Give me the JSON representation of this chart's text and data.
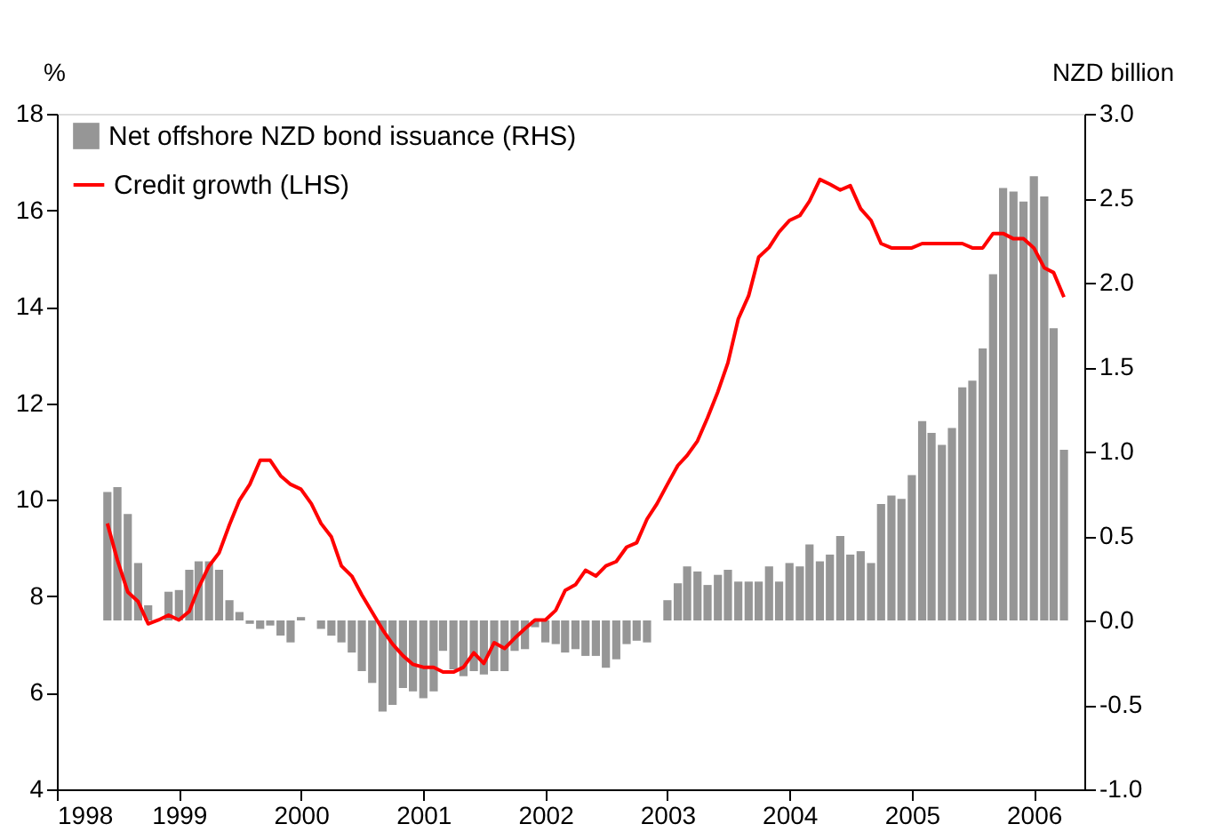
{
  "chart_data": {
    "type": "bar",
    "ylabel": "%",
    "y2label": "NZD billion",
    "x": [
      "1998-06",
      "1998-07",
      "1998-08",
      "1998-09",
      "1998-10",
      "1998-11",
      "1998-12",
      "1999-01",
      "1999-02",
      "1999-03",
      "1999-04",
      "1999-05",
      "1999-06",
      "1999-07",
      "1999-08",
      "1999-09",
      "1999-10",
      "1999-11",
      "1999-12",
      "2000-01",
      "2000-02",
      "2000-03",
      "2000-04",
      "2000-05",
      "2000-06",
      "2000-07",
      "2000-08",
      "2000-09",
      "2000-10",
      "2000-11",
      "2000-12",
      "2001-01",
      "2001-02",
      "2001-03",
      "2001-04",
      "2001-05",
      "2001-06",
      "2001-07",
      "2001-08",
      "2001-09",
      "2001-10",
      "2001-11",
      "2001-12",
      "2002-01",
      "2002-02",
      "2002-03",
      "2002-04",
      "2002-05",
      "2002-06",
      "2002-07",
      "2002-08",
      "2002-09",
      "2002-10",
      "2002-11",
      "2002-12",
      "2003-01",
      "2003-02",
      "2003-03",
      "2003-04",
      "2003-05",
      "2003-06",
      "2003-07",
      "2003-08",
      "2003-09",
      "2003-10",
      "2003-11",
      "2003-12",
      "2004-01",
      "2004-02",
      "2004-03",
      "2004-04",
      "2004-05",
      "2004-06",
      "2004-07",
      "2004-08",
      "2004-09",
      "2004-10",
      "2004-11",
      "2004-12",
      "2005-01",
      "2005-02",
      "2005-03",
      "2005-04",
      "2005-05",
      "2005-06",
      "2005-07",
      "2005-08",
      "2005-09",
      "2005-10",
      "2005-11",
      "2005-12",
      "2006-01",
      "2006-02",
      "2006-03",
      "2006-04"
    ],
    "series": [
      {
        "name": "Net offshore NZD bond issuance (RHS)",
        "axis": "y2",
        "color": "#969696",
        "values": [
          0.76,
          0.79,
          0.63,
          0.34,
          0.09,
          0,
          0.17,
          0.18,
          0.3,
          0.35,
          0.35,
          0.3,
          0.12,
          0.05,
          -0.02,
          -0.05,
          -0.03,
          -0.09,
          -0.13,
          0.02,
          0,
          -0.05,
          -0.09,
          -0.13,
          -0.19,
          -0.3,
          -0.37,
          -0.54,
          -0.5,
          -0.4,
          -0.42,
          -0.46,
          -0.42,
          -0.18,
          -0.29,
          -0.33,
          -0.3,
          -0.32,
          -0.3,
          -0.3,
          -0.18,
          -0.17,
          -0.04,
          -0.13,
          -0.14,
          -0.19,
          -0.17,
          -0.21,
          -0.21,
          -0.28,
          -0.23,
          -0.14,
          -0.12,
          -0.13,
          0,
          0.12,
          0.22,
          0.32,
          0.29,
          0.21,
          0.27,
          0.3,
          0.23,
          0.23,
          0.23,
          0.32,
          0.23,
          0.34,
          0.32,
          0.45,
          0.35,
          0.39,
          0.5,
          0.39,
          0.41,
          0.34,
          0.69,
          0.74,
          0.72,
          0.86,
          1.18,
          1.11,
          1.04,
          1.14,
          1.38,
          1.42,
          1.61,
          2.05,
          2.56,
          2.54,
          2.48,
          2.63,
          2.51,
          1.73,
          1.01
        ]
      },
      {
        "name": "Credit growth (LHS)",
        "type": "line",
        "color": "#ff0000",
        "values": [
          9.51,
          8.75,
          8.09,
          7.89,
          7.43,
          7.51,
          7.61,
          7.51,
          7.69,
          8.18,
          8.63,
          8.9,
          9.48,
          9.99,
          10.32,
          10.82,
          10.82,
          10.5,
          10.32,
          10.22,
          9.92,
          9.51,
          9.23,
          8.63,
          8.42,
          8.03,
          7.67,
          7.31,
          7.01,
          6.77,
          6.59,
          6.53,
          6.53,
          6.43,
          6.43,
          6.53,
          6.83,
          6.61,
          7.04,
          6.92,
          7.13,
          7.33,
          7.51,
          7.51,
          7.71,
          8.12,
          8.24,
          8.54,
          8.42,
          8.63,
          8.72,
          9.02,
          9.11,
          9.6,
          9.92,
          10.32,
          10.71,
          10.92,
          11.22,
          11.7,
          12.24,
          12.84,
          13.75,
          14.23,
          15.03,
          15.23,
          15.55,
          15.79,
          15.89,
          16.19,
          16.64,
          16.54,
          16.42,
          16.51,
          16.03,
          15.79,
          15.31,
          15.22,
          15.22,
          15.22,
          15.31,
          15.31,
          15.31,
          15.31,
          15.31,
          15.22,
          15.22,
          15.52,
          15.52,
          15.41,
          15.41,
          15.22,
          14.81,
          14.71,
          14.2
        ]
      }
    ],
    "xlim": [
      "1998-01",
      "2006-06"
    ],
    "xticks": [
      "1998",
      "1999",
      "2000",
      "2001",
      "2002",
      "2003",
      "2004",
      "2005",
      "2006"
    ],
    "ylim": [
      4,
      18
    ],
    "yticks": [
      4,
      6,
      8,
      10,
      12,
      14,
      16,
      18
    ],
    "y2lim": [
      -1,
      3
    ],
    "y2ticks": [
      {
        "value": -1,
        "label": "-1.0"
      },
      {
        "value": -0.5,
        "label": "-0.5"
      },
      {
        "value": 0,
        "label": "0.0"
      },
      {
        "value": 0.5,
        "label": "0.5"
      },
      {
        "value": 1,
        "label": "1.0"
      },
      {
        "value": 1.5,
        "label": "1.5"
      },
      {
        "value": 2,
        "label": "2.0"
      },
      {
        "value": 2.5,
        "label": "2.5"
      },
      {
        "value": 3,
        "label": "3.0"
      }
    ],
    "grid": false,
    "legend": "top left",
    "marker": "none",
    "line_style": "solid"
  }
}
